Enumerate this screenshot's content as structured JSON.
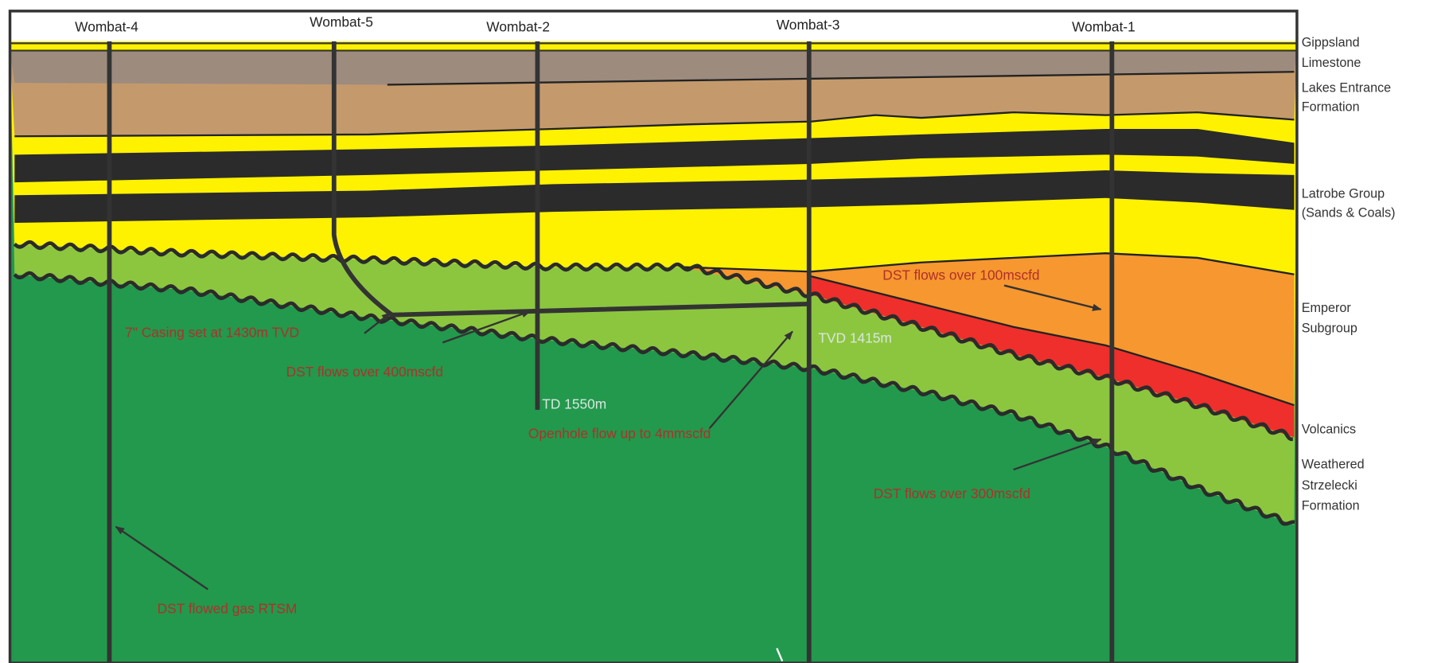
{
  "wells": [
    "Wombat-4",
    "Wombat-5",
    "Wombat-2",
    "Wombat-3",
    "Wombat-1"
  ],
  "formations": [
    {
      "lines": [
        "Gippsland",
        "Limestone"
      ]
    },
    {
      "lines": [
        "Lakes Entrance",
        "Formation"
      ]
    },
    {
      "lines": [
        "Latrobe Group",
        "(Sands & Coals)"
      ]
    },
    {
      "lines": [
        "Emperor",
        "Subgroup"
      ]
    },
    {
      "lines": [
        "Volcanics"
      ]
    },
    {
      "lines": [
        "Weathered",
        "Strzelecki",
        "Formation"
      ]
    }
  ],
  "annotations": [
    "DST flows over 100mscfd",
    "7\" Casing set at 1430m TVD",
    "DST flows over 400mscfd",
    "TD 1550m",
    "Openhole flow up to 4mmscfd",
    "TVD 1415m",
    "DST flows over 300mscfd",
    "DST flowed gas RTSM"
  ]
}
